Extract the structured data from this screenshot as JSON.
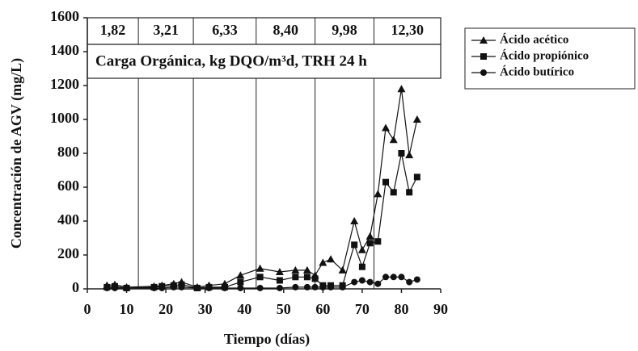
{
  "chart_data": {
    "type": "line",
    "xlabel": "Tiempo (días)",
    "ylabel": "Concentración de AGV (mg/L)",
    "annotation": "Carga Orgánica, kg DQO/m³d, TRH 24 h",
    "phase_labels": [
      "1,82",
      "3,21",
      "6,33",
      "8,40",
      "9,98",
      "12,30"
    ],
    "phase_boundaries": [
      13,
      27,
      43,
      58,
      73
    ],
    "x": [
      5,
      7,
      10,
      17,
      19,
      22,
      24,
      28,
      31,
      35,
      39,
      44,
      49,
      53,
      56,
      58,
      60,
      62,
      65,
      68,
      70,
      72,
      74,
      76,
      78,
      80,
      82,
      84
    ],
    "series": [
      {
        "name": "Ácido acético",
        "color": "#111111",
        "marker": "triangle",
        "values": [
          20,
          25,
          10,
          15,
          20,
          30,
          40,
          10,
          20,
          30,
          80,
          120,
          100,
          110,
          110,
          80,
          155,
          175,
          110,
          400,
          230,
          310,
          560,
          950,
          880,
          1180,
          790,
          1000
        ]
      },
      {
        "name": "Ácido propiónico",
        "color": "#111111",
        "marker": "square",
        "values": [
          10,
          15,
          5,
          10,
          15,
          20,
          25,
          5,
          10,
          10,
          40,
          70,
          50,
          70,
          70,
          60,
          20,
          20,
          20,
          260,
          130,
          270,
          280,
          630,
          570,
          800,
          570,
          660
        ]
      },
      {
        "name": "Ácido butírico",
        "color": "#111111",
        "marker": "circle",
        "values": [
          5,
          5,
          5,
          5,
          5,
          10,
          10,
          5,
          5,
          5,
          5,
          5,
          5,
          10,
          10,
          10,
          10,
          10,
          10,
          40,
          50,
          40,
          30,
          70,
          70,
          70,
          40,
          55
        ]
      }
    ],
    "xlim": [
      0,
      90
    ],
    "xticks": [
      0,
      10,
      20,
      30,
      40,
      50,
      60,
      70,
      80,
      90
    ],
    "ylim": [
      0,
      1600
    ],
    "yticks": [
      0,
      200,
      400,
      600,
      800,
      1000,
      1200,
      1400,
      1600
    ],
    "legend": "right"
  }
}
